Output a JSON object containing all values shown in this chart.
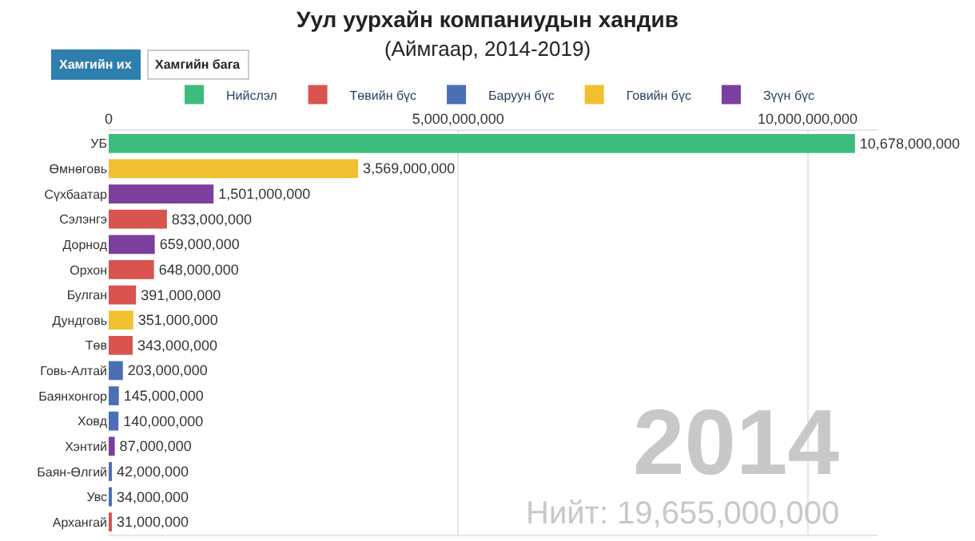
{
  "chart_data": {
    "type": "bar",
    "orientation": "horizontal",
    "title": "Уул уурхайн компаниудын хандив",
    "subtitle": "(Аймгаар, 2014-2019)",
    "categories": [
      "УБ",
      "Өмнөговь",
      "Сүхбаатар",
      "Сэлэнгэ",
      "Дорнод",
      "Орхон",
      "Булган",
      "Дундговь",
      "Төв",
      "Говь-Алтай",
      "Баянхонгор",
      "Ховд",
      "Хэнтий",
      "Баян-Өлгий",
      "Увс",
      "Архангай"
    ],
    "series": [
      {
        "name": "Нийслэл",
        "color": "#3dbd7d",
        "values": [
          10678000000,
          null,
          null,
          null,
          null,
          null,
          null,
          null,
          null,
          null,
          null,
          null,
          null,
          null,
          null,
          null
        ],
        "value_labels": [
          "10,678,000,000",
          null,
          null,
          null,
          null,
          null,
          null,
          null,
          null,
          null,
          null,
          null,
          null,
          null,
          null,
          null
        ]
      },
      {
        "name": "Төвийн бүс",
        "color": "#d9534f",
        "values": [
          null,
          null,
          null,
          833000000,
          null,
          648000000,
          391000000,
          null,
          343000000,
          null,
          null,
          null,
          null,
          null,
          null,
          31000000
        ],
        "value_labels": [
          null,
          null,
          null,
          "833,000,000",
          null,
          "648,000,000",
          "391,000,000",
          null,
          "343,000,000",
          null,
          null,
          null,
          null,
          null,
          null,
          "31,000,000"
        ]
      },
      {
        "name": "Баруун бүс",
        "color": "#4a6fb5",
        "values": [
          null,
          null,
          null,
          null,
          null,
          null,
          null,
          null,
          null,
          203000000,
          145000000,
          140000000,
          null,
          42000000,
          34000000,
          null
        ],
        "value_labels": [
          null,
          null,
          null,
          null,
          null,
          null,
          null,
          null,
          null,
          "203,000,000",
          "145,000,000",
          "140,000,000",
          null,
          "42,000,000",
          "34,000,000",
          null
        ]
      },
      {
        "name": "Говийн бүс",
        "color": "#f0c030",
        "values": [
          null,
          3569000000,
          null,
          null,
          null,
          null,
          null,
          351000000,
          null,
          null,
          null,
          null,
          null,
          null,
          null,
          null
        ],
        "value_labels": [
          null,
          "3,569,000,000",
          null,
          null,
          null,
          null,
          null,
          "351,000,000",
          null,
          null,
          null,
          null,
          null,
          null,
          null,
          null
        ]
      },
      {
        "name": "Зүүн бүс",
        "color": "#7b3f9e",
        "values": [
          null,
          null,
          1501000000,
          null,
          659000000,
          null,
          null,
          null,
          null,
          null,
          null,
          null,
          87000000,
          null,
          null,
          null
        ],
        "value_labels": [
          null,
          null,
          "1,501,000,000",
          null,
          "659,000,000",
          null,
          null,
          null,
          null,
          null,
          null,
          null,
          "87,000,000",
          null,
          null,
          null
        ]
      }
    ],
    "xlim": [
      0,
      11000000000
    ],
    "xticks": [
      {
        "value": 0,
        "label": "0"
      },
      {
        "value": 5000000000,
        "label": "5,000,000,000"
      },
      {
        "value": 10000000000,
        "label": "10,000,000,000"
      }
    ],
    "grid": "x",
    "legend": "top",
    "annotations": [
      "Хамгийн их",
      "Хамгийн бага",
      "2014",
      "Нийт: 19,655,000,000"
    ]
  }
}
